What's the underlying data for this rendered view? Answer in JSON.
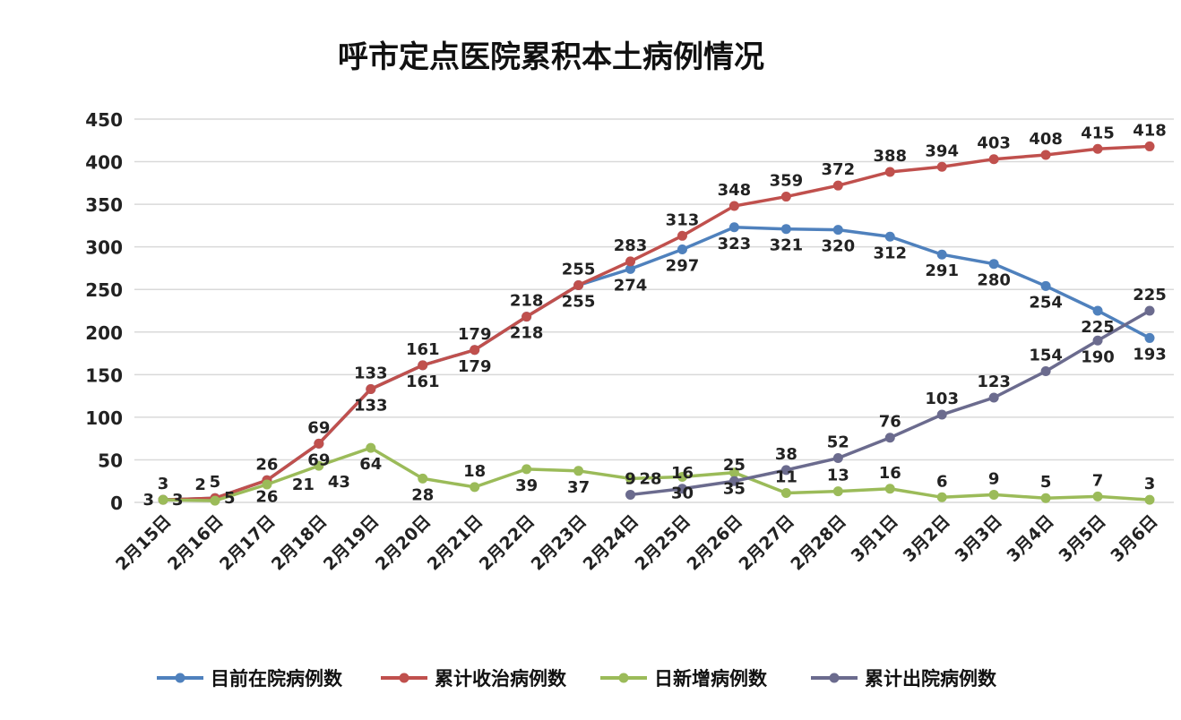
{
  "chart_data": {
    "type": "line",
    "title": "呼市定点医院累积本土病例情况",
    "xlabel": "",
    "ylabel": "",
    "ylim": [
      0,
      450
    ],
    "yticks": [
      0,
      50,
      100,
      150,
      200,
      250,
      300,
      350,
      400,
      450
    ],
    "grid": true,
    "legend_position": "bottom",
    "categories": [
      "2月15日",
      "2月16日",
      "2月17日",
      "2月18日",
      "2月19日",
      "2月20日",
      "2月21日",
      "2月22日",
      "2月23日",
      "2月24日",
      "2月25日",
      "2月26日",
      "2月27日",
      "2月28日",
      "3月1日",
      "3月2日",
      "3月3日",
      "3月4日",
      "3月5日",
      "3月6日"
    ],
    "series": [
      {
        "name": "目前在院病例数",
        "color": "#4f81bd",
        "values": [
          3,
          5,
          26,
          69,
          133,
          161,
          179,
          218,
          255,
          274,
          297,
          323,
          321,
          320,
          312,
          291,
          280,
          254,
          225,
          193
        ]
      },
      {
        "name": "累计收治病例数",
        "color": "#c0504d",
        "values": [
          3,
          5,
          26,
          69,
          133,
          161,
          179,
          218,
          255,
          283,
          313,
          348,
          359,
          372,
          388,
          394,
          403,
          408,
          415,
          418
        ]
      },
      {
        "name": "日新增病例数",
        "color": "#9bbb59",
        "values": [
          3,
          2,
          21,
          43,
          64,
          28,
          18,
          39,
          37,
          28,
          30,
          35,
          11,
          13,
          16,
          6,
          9,
          5,
          7,
          3
        ]
      },
      {
        "name": "累计出院病例数",
        "color": "#6b6b8e",
        "values": [
          null,
          null,
          null,
          null,
          null,
          null,
          null,
          null,
          null,
          9,
          16,
          25,
          38,
          52,
          76,
          103,
          123,
          154,
          190,
          225
        ]
      }
    ]
  }
}
